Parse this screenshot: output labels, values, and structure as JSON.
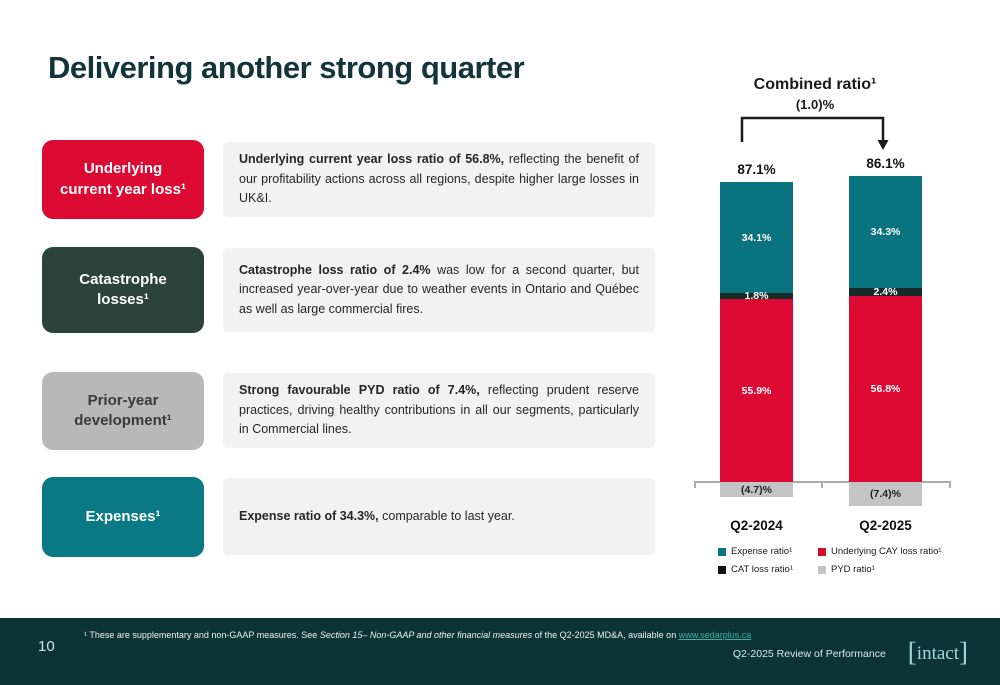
{
  "slide": {
    "title": "Delivering another strong quarter",
    "page_number": "10",
    "footer_caption": "Q2-2025 Review of Performance",
    "logo_text": "intact",
    "footnote": {
      "prefix": "¹ These are supplementary and non-GAAP measures. See ",
      "italic": "Section 15– Non-GAAP and other financial measures",
      "middle": " of the Q2-2025 MD&A, available on ",
      "link": "www.sedarplus.ca"
    }
  },
  "rows": [
    {
      "box_label": "Underlying current year loss¹",
      "box_color": "#DC0A32",
      "box_text_color": "#FFFFFF",
      "text_bold": "Underlying current year loss ratio of 56.8%,",
      "text_rest": " reflecting the benefit of our profitability actions across all regions, despite higher large losses in UK&I."
    },
    {
      "box_label": "Catastrophe losses¹",
      "box_color": "#2C433C",
      "box_text_color": "#FFFFFF",
      "text_bold": "Catastrophe loss ratio of 2.4%",
      "text_rest": " was low for a second quarter, but increased year-over-year due to weather events in Ontario and Québec as well as large commercial fires."
    },
    {
      "box_label": "Prior-year development¹",
      "box_color": "#B8B8B8",
      "box_text_color": "#3A3A3A",
      "text_bold": "Strong favourable PYD ratio of 7.4%,",
      "text_rest": " reflecting prudent reserve practices, driving healthy contributions in all our segments, particularly in Commercial lines."
    },
    {
      "box_label": "Expenses¹",
      "box_color": "#087985",
      "box_text_color": "#FFFFFF",
      "text_bold": "Expense ratio of 34.3%,",
      "text_rest": " comparable to last year."
    }
  ],
  "chart_data": {
    "type": "bar",
    "stacked": true,
    "title": "Combined ratio¹",
    "change_label": "(1.0)%",
    "categories": [
      "Q2-2024",
      "Q2-2025"
    ],
    "totals": [
      87.1,
      86.1
    ],
    "total_labels": [
      "87.1%",
      "86.1%"
    ],
    "series": [
      {
        "name": "Expense ratio¹",
        "color": "#0A7380",
        "values": [
          34.1,
          34.3
        ],
        "labels": [
          "34.1%",
          "34.3%"
        ]
      },
      {
        "name": "CAT loss ratio¹",
        "color": "#142B28",
        "values": [
          1.8,
          2.4
        ],
        "labels": [
          "1.8%",
          "2.4%"
        ]
      },
      {
        "name": "Underlying CAY loss ratio¹",
        "color": "#DC0A32",
        "values": [
          55.9,
          56.8
        ],
        "labels": [
          "55.9%",
          "56.8%"
        ]
      },
      {
        "name": "PYD ratio¹",
        "color": "#C4C4C4",
        "values": [
          -4.7,
          -7.4
        ],
        "labels": [
          "(4.7)%",
          "(7.4)%"
        ]
      }
    ],
    "legend": [
      {
        "label": "Expense ratio¹",
        "color": "#0A7380"
      },
      {
        "label": "Underlying CAY loss ratio¹",
        "color": "#DC0A32"
      },
      {
        "label": "CAT loss ratio¹",
        "color": "#111111"
      },
      {
        "label": "PYD ratio¹",
        "color": "#C4C4C4"
      }
    ],
    "ylim": [
      -8,
      94
    ],
    "grid": false,
    "legend_position": "bottom"
  }
}
